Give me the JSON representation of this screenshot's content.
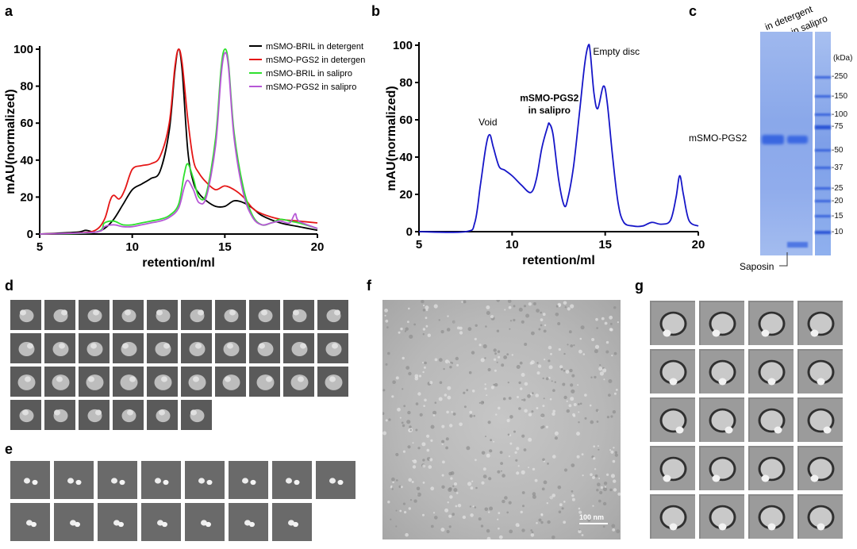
{
  "panels": {
    "a": {
      "letter": "a"
    },
    "b": {
      "letter": "b"
    },
    "c": {
      "letter": "c"
    },
    "d": {
      "letter": "d"
    },
    "e": {
      "letter": "e"
    },
    "f": {
      "letter": "f"
    },
    "g": {
      "letter": "g"
    }
  },
  "chart_data": [
    {
      "type": "line",
      "panel": "a",
      "xlabel": "retention/ml",
      "ylabel": "mAU(normalized)",
      "xlim": [
        5,
        20
      ],
      "ylim": [
        0,
        100
      ],
      "xticks": [
        5,
        10,
        15,
        20
      ],
      "yticks": [
        0,
        20,
        40,
        60,
        80,
        100
      ],
      "grid": false,
      "legend_position": "top-right",
      "series": [
        {
          "name": "mSMO-BRIL in detergent",
          "color": "#000000",
          "x": [
            5,
            7,
            7.5,
            8,
            8.5,
            9,
            9.5,
            10,
            10.5,
            11,
            11.5,
            12,
            12.3,
            12.5,
            12.7,
            13,
            13.3,
            13.6,
            14,
            14.5,
            15,
            15.5,
            16,
            16.5,
            17,
            18,
            19,
            20
          ],
          "y": [
            0,
            1,
            2,
            1,
            3,
            8,
            16,
            24,
            27,
            30,
            34,
            56,
            88,
            100,
            88,
            45,
            28,
            22,
            18,
            15,
            15,
            18,
            17,
            14,
            10,
            6,
            4,
            2
          ]
        },
        {
          "name": "mSMO-PGS2 in detergent",
          "color": "#e51616",
          "x": [
            5,
            7,
            8,
            8.5,
            8.8,
            9,
            9.3,
            9.6,
            10,
            10.5,
            11,
            11.5,
            12,
            12.3,
            12.5,
            12.7,
            13,
            13.3,
            13.6,
            14,
            14.5,
            15,
            15.5,
            16,
            16.5,
            17,
            18,
            19,
            20
          ],
          "y": [
            0,
            0.5,
            2,
            8,
            18,
            21,
            19,
            24,
            35,
            37,
            38,
            42,
            60,
            90,
            100,
            92,
            62,
            40,
            33,
            28,
            24,
            26,
            24,
            20,
            14,
            11,
            8,
            7,
            6
          ]
        },
        {
          "name": "mSMO-BRIL in salipro",
          "color": "#2ee02e",
          "x": [
            5,
            8,
            8.5,
            9,
            9.5,
            10,
            10.5,
            11,
            11.5,
            12,
            12.5,
            12.8,
            13,
            13.3,
            13.6,
            14,
            14.5,
            14.8,
            15,
            15.2,
            15.5,
            16,
            16.5,
            17,
            17.5,
            18,
            18.5,
            19,
            20
          ],
          "y": [
            0,
            1,
            6,
            7,
            5,
            5,
            6,
            7,
            8,
            10,
            16,
            32,
            38,
            30,
            20,
            22,
            52,
            90,
            100,
            92,
            55,
            25,
            10,
            5,
            6,
            8,
            7,
            6,
            3
          ]
        },
        {
          "name": "mSMO-PGS2 in salipro",
          "color": "#b657d6",
          "x": [
            5,
            8,
            8.5,
            9,
            9.5,
            10,
            10.5,
            11,
            11.5,
            12,
            12.5,
            12.8,
            13,
            13.3,
            13.6,
            14,
            14.5,
            14.8,
            15,
            15.2,
            15.5,
            16,
            16.5,
            17,
            17.5,
            18,
            18.5,
            18.8,
            19,
            20
          ],
          "y": [
            0,
            1,
            4,
            5,
            4,
            4,
            5,
            6,
            7,
            9,
            14,
            25,
            29,
            24,
            17,
            20,
            48,
            86,
            98,
            90,
            52,
            22,
            9,
            5,
            6,
            7,
            6,
            11,
            7,
            3
          ]
        }
      ]
    },
    {
      "type": "line",
      "panel": "b",
      "xlabel": "retention/ml",
      "ylabel": "mAU(normalized)",
      "xlim": [
        5,
        20
      ],
      "ylim": [
        0,
        100
      ],
      "xticks": [
        5,
        10,
        15,
        20
      ],
      "yticks": [
        0,
        20,
        40,
        60,
        80,
        100
      ],
      "grid": false,
      "series": [
        {
          "name": "",
          "color": "#1616c8",
          "x": [
            5,
            7.5,
            8,
            8.3,
            8.6,
            8.8,
            9,
            9.3,
            9.6,
            10,
            10.5,
            11,
            11.3,
            11.6,
            11.9,
            12,
            12.2,
            12.5,
            12.8,
            13,
            13.3,
            13.6,
            13.9,
            14.1,
            14.2,
            14.4,
            14.6,
            14.9,
            15.1,
            15.4,
            15.7,
            16,
            16.5,
            17,
            17.5,
            18,
            18.5,
            18.8,
            19,
            19.2,
            19.5,
            20
          ],
          "y": [
            0,
            0,
            5,
            25,
            46,
            52,
            45,
            35,
            33,
            30,
            25,
            21,
            28,
            45,
            56,
            58,
            52,
            28,
            14,
            18,
            35,
            62,
            90,
            100,
            96,
            74,
            66,
            78,
            70,
            40,
            15,
            5,
            3,
            3,
            5,
            4,
            6,
            18,
            30,
            20,
            6,
            3
          ]
        }
      ],
      "annotations": [
        "Void",
        "mSMO-PGS2",
        "in salipro",
        "Empty disc"
      ]
    }
  ],
  "gel": {
    "lane_labels": [
      "in detergent",
      "in salipro"
    ],
    "unit": "(kDa)",
    "markers": [
      "250",
      "150",
      "100",
      "75",
      "50",
      "37",
      "25",
      "20",
      "15",
      "10"
    ],
    "band_label": "mSMO-PGS2",
    "saposin_label": "Saposin"
  },
  "micrograph": {
    "scale_bar": "100 nm"
  }
}
